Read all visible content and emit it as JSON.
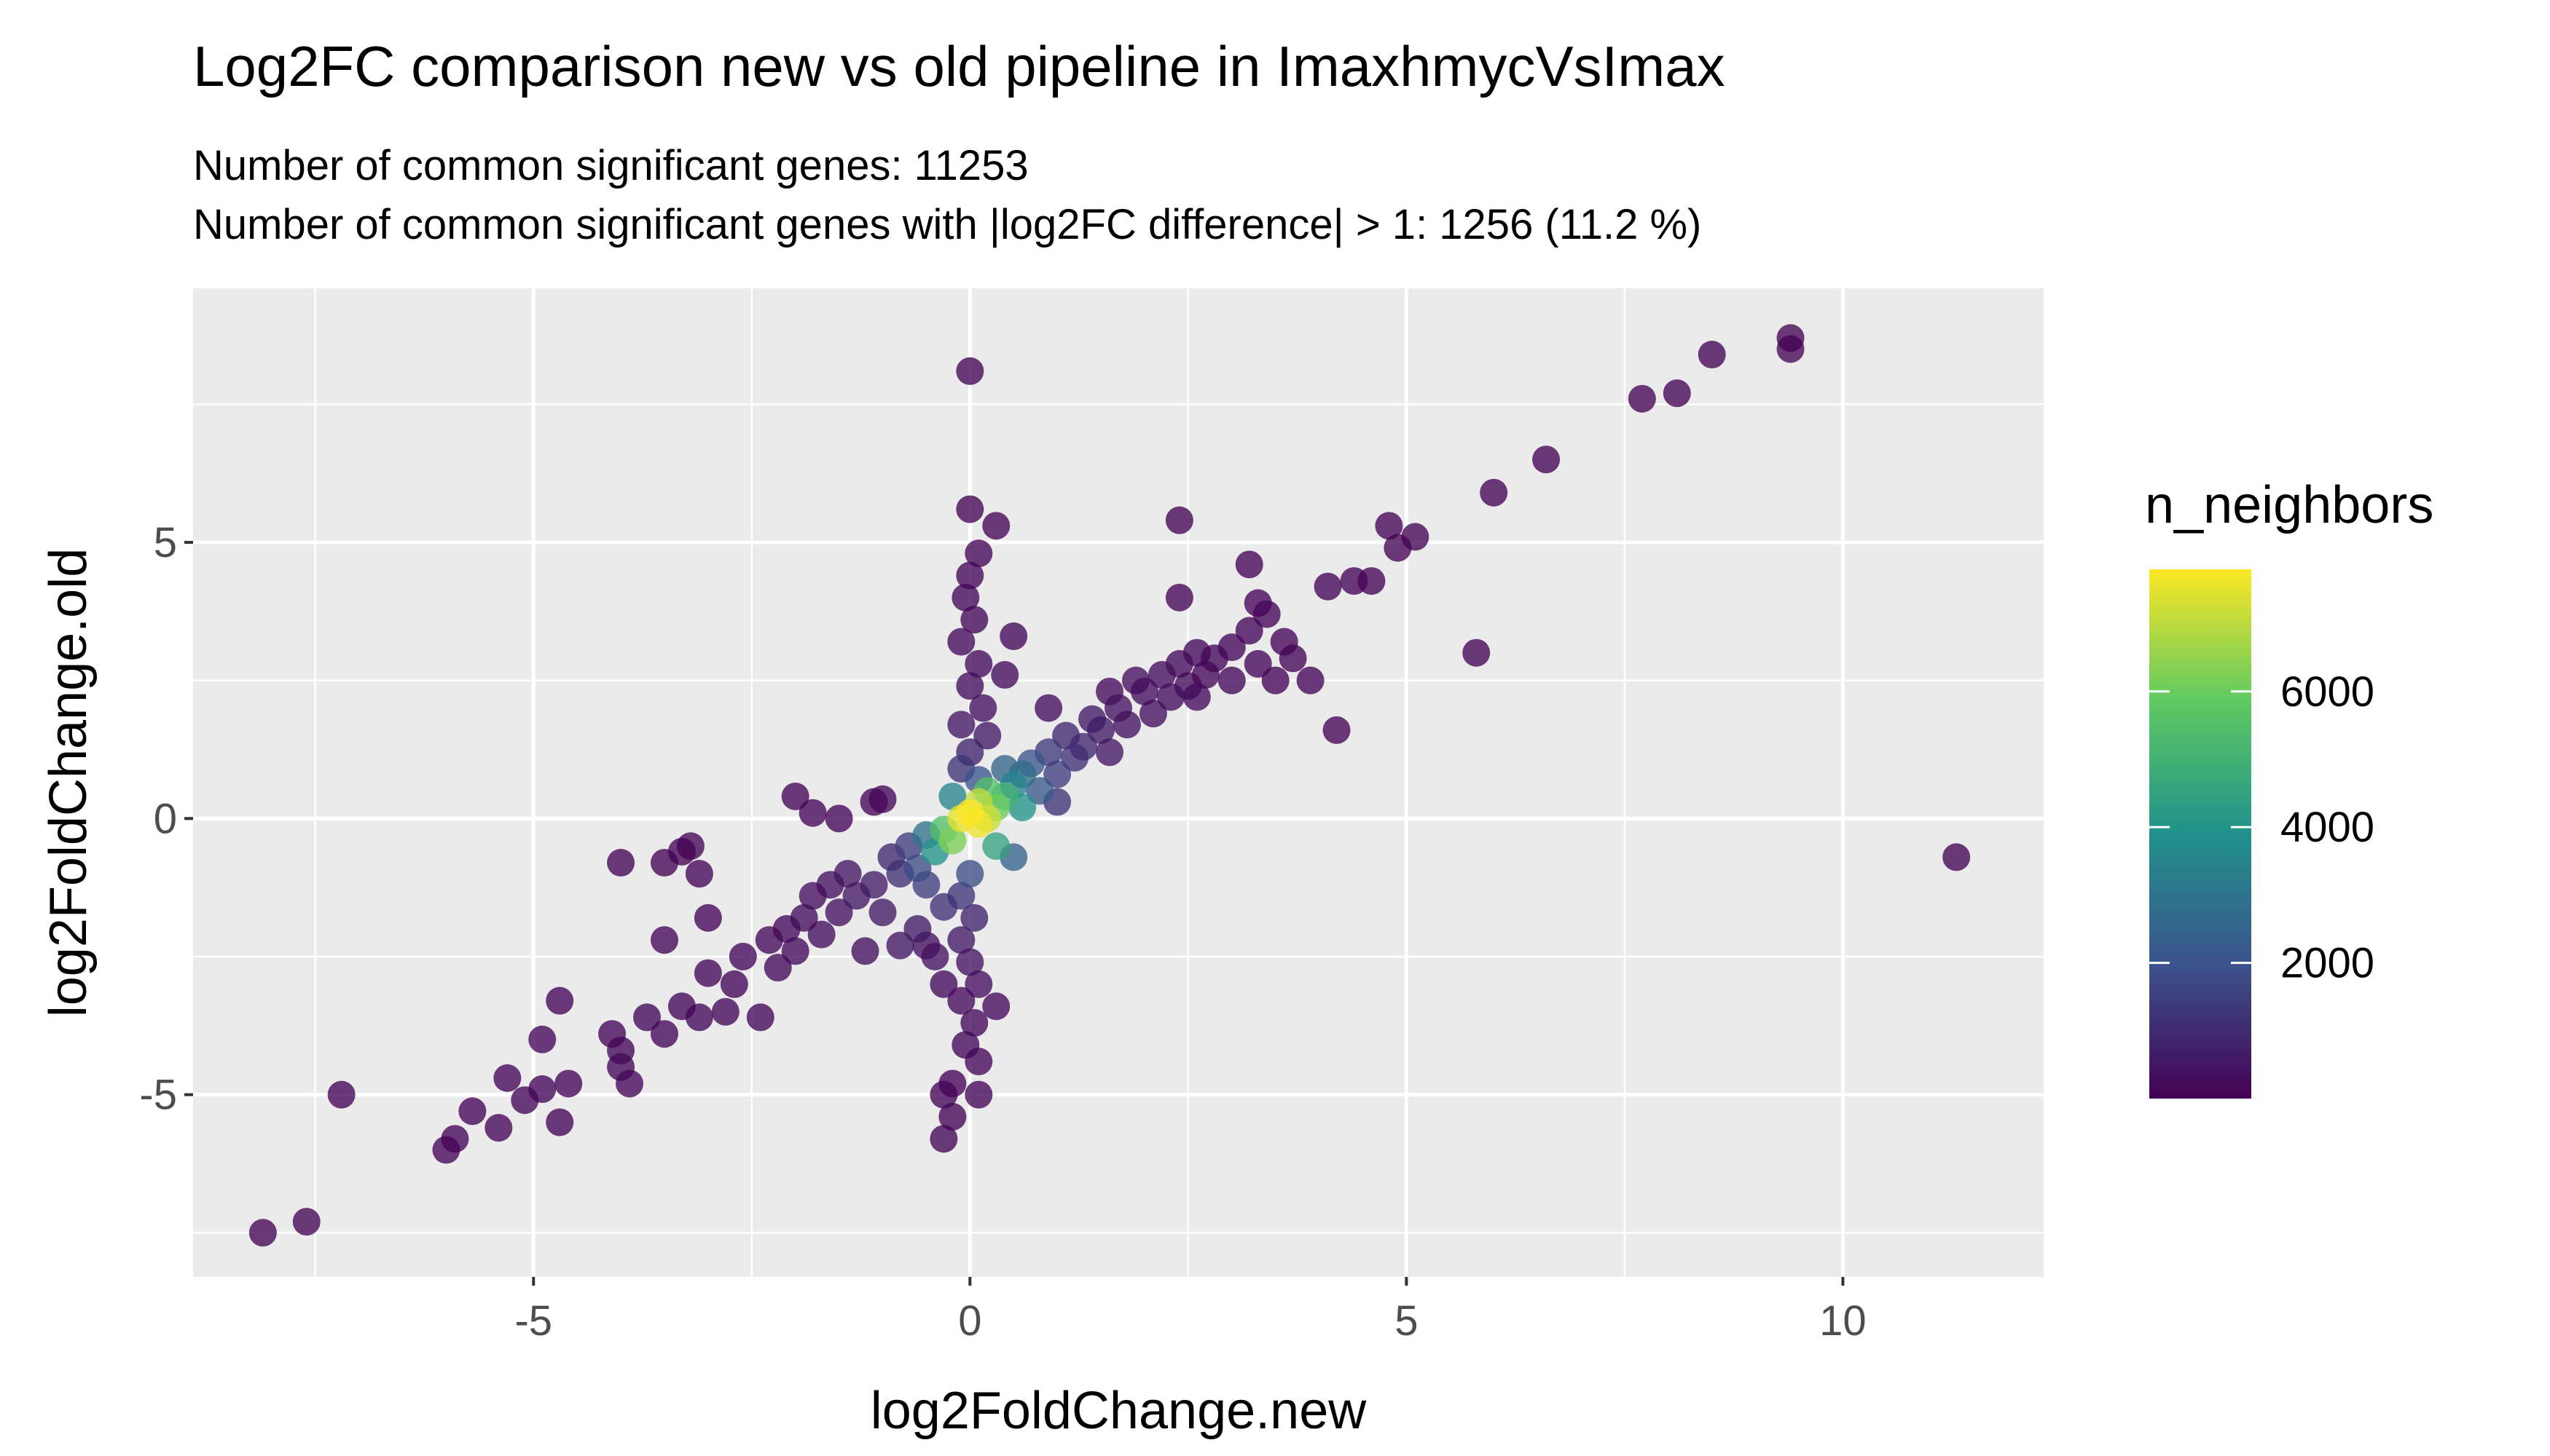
{
  "chart_data": {
    "type": "scatter",
    "title": "Log2FC comparison new vs old pipeline in ImaxhmycVsImax",
    "subtitle_lines": [
      "Number of common significant genes: 11253",
      "Number of common significant genes with |log2FC difference| > 1: 1256 (11.2 %)"
    ],
    "xlabel": "log2FoldChange.new",
    "ylabel": "log2FoldChange.old",
    "xlim": [
      -8.9,
      12.3
    ],
    "ylim": [
      -8.3,
      9.6
    ],
    "x_ticks": [
      -5,
      0,
      5,
      10
    ],
    "x_tick_labels": [
      "-5",
      "0",
      "5",
      "10"
    ],
    "y_ticks": [
      -5,
      0,
      5
    ],
    "y_tick_labels": [
      "-5",
      "0",
      "5"
    ],
    "grid": true,
    "panel_background": "#ebebeb",
    "legend": {
      "title": "n_neighbors",
      "placement": "right",
      "range": [
        0,
        7800
      ],
      "ticks": [
        2000,
        4000,
        6000
      ],
      "tick_labels": [
        "2000",
        "4000",
        "6000"
      ],
      "colors": [
        "#440154",
        "#3b528b",
        "#21918c",
        "#5ec962",
        "#fde725"
      ]
    },
    "points": [
      {
        "x": -8.1,
        "y": -7.5,
        "n": 40
      },
      {
        "x": -7.6,
        "y": -7.3,
        "n": 40
      },
      {
        "x": -7.2,
        "y": -5.0,
        "n": 60
      },
      {
        "x": -6.0,
        "y": -6.0,
        "n": 60
      },
      {
        "x": -5.9,
        "y": -5.8,
        "n": 60
      },
      {
        "x": -5.7,
        "y": -5.3,
        "n": 80
      },
      {
        "x": -5.4,
        "y": -5.6,
        "n": 80
      },
      {
        "x": -5.3,
        "y": -4.7,
        "n": 80
      },
      {
        "x": -5.1,
        "y": -5.1,
        "n": 90
      },
      {
        "x": -4.9,
        "y": -4.9,
        "n": 100
      },
      {
        "x": -4.7,
        "y": -5.5,
        "n": 80
      },
      {
        "x": -4.6,
        "y": -4.8,
        "n": 80
      },
      {
        "x": -4.9,
        "y": -4.0,
        "n": 90
      },
      {
        "x": -4.7,
        "y": -3.3,
        "n": 80
      },
      {
        "x": -4.1,
        "y": -3.9,
        "n": 90
      },
      {
        "x": -4.0,
        "y": -4.5,
        "n": 100
      },
      {
        "x": -3.9,
        "y": -4.8,
        "n": 100
      },
      {
        "x": -4.0,
        "y": -4.2,
        "n": 110
      },
      {
        "x": -4.0,
        "y": -0.8,
        "n": 50
      },
      {
        "x": -3.5,
        "y": -0.8,
        "n": 50
      },
      {
        "x": -3.3,
        "y": -0.6,
        "n": 50
      },
      {
        "x": -3.2,
        "y": -0.5,
        "n": 50
      },
      {
        "x": -3.1,
        "y": -1.0,
        "n": 60
      },
      {
        "x": -3.0,
        "y": -1.8,
        "n": 80
      },
      {
        "x": -3.5,
        "y": -2.2,
        "n": 100
      },
      {
        "x": -3.7,
        "y": -3.6,
        "n": 110
      },
      {
        "x": -3.5,
        "y": -3.9,
        "n": 110
      },
      {
        "x": -3.3,
        "y": -3.4,
        "n": 120
      },
      {
        "x": -3.1,
        "y": -3.6,
        "n": 120
      },
      {
        "x": -3.0,
        "y": -2.8,
        "n": 130
      },
      {
        "x": -2.8,
        "y": -3.5,
        "n": 130
      },
      {
        "x": -2.7,
        "y": -3.0,
        "n": 140
      },
      {
        "x": -2.6,
        "y": -2.5,
        "n": 150
      },
      {
        "x": -2.4,
        "y": -3.6,
        "n": 130
      },
      {
        "x": -2.3,
        "y": -2.2,
        "n": 180
      },
      {
        "x": -2.2,
        "y": -2.7,
        "n": 180
      },
      {
        "x": -2.1,
        "y": -2.0,
        "n": 200
      },
      {
        "x": -2.0,
        "y": -2.4,
        "n": 220
      },
      {
        "x": -1.9,
        "y": -1.8,
        "n": 260
      },
      {
        "x": -2.0,
        "y": 0.4,
        "n": 60
      },
      {
        "x": -1.8,
        "y": 0.1,
        "n": 70
      },
      {
        "x": -1.5,
        "y": 0.0,
        "n": 80
      },
      {
        "x": -1.1,
        "y": 0.3,
        "n": 90
      },
      {
        "x": -1.0,
        "y": 0.35,
        "n": 90
      },
      {
        "x": -1.8,
        "y": -1.4,
        "n": 300
      },
      {
        "x": -1.7,
        "y": -2.1,
        "n": 260
      },
      {
        "x": -1.6,
        "y": -1.2,
        "n": 350
      },
      {
        "x": -1.5,
        "y": -1.7,
        "n": 380
      },
      {
        "x": -1.4,
        "y": -1.0,
        "n": 450
      },
      {
        "x": -1.3,
        "y": -1.4,
        "n": 520
      },
      {
        "x": -1.2,
        "y": -2.4,
        "n": 300
      },
      {
        "x": -1.1,
        "y": -1.2,
        "n": 650
      },
      {
        "x": -1.0,
        "y": -1.7,
        "n": 600
      },
      {
        "x": -0.9,
        "y": -0.7,
        "n": 900
      },
      {
        "x": -0.8,
        "y": -1.0,
        "n": 1100
      },
      {
        "x": -0.8,
        "y": -2.3,
        "n": 500
      },
      {
        "x": -0.7,
        "y": -0.5,
        "n": 1500
      },
      {
        "x": -0.6,
        "y": -0.9,
        "n": 1800
      },
      {
        "x": -0.6,
        "y": -2.0,
        "n": 600
      },
      {
        "x": -0.5,
        "y": -1.2,
        "n": 1500
      },
      {
        "x": -0.5,
        "y": -0.3,
        "n": 3000
      },
      {
        "x": -0.4,
        "y": -0.6,
        "n": 4000
      },
      {
        "x": -0.4,
        "y": -2.5,
        "n": 400
      },
      {
        "x": -0.3,
        "y": -1.6,
        "n": 1100
      },
      {
        "x": -0.3,
        "y": -0.2,
        "n": 5500
      },
      {
        "x": -0.2,
        "y": -0.4,
        "n": 6200
      },
      {
        "x": -0.2,
        "y": 0.4,
        "n": 3500
      },
      {
        "x": -0.1,
        "y": 0.0,
        "n": 7500
      },
      {
        "x": 0.0,
        "y": 0.1,
        "n": 7800
      },
      {
        "x": 0.1,
        "y": -0.1,
        "n": 7600
      },
      {
        "x": 0.1,
        "y": 0.3,
        "n": 7000
      },
      {
        "x": 0.2,
        "y": 0.0,
        "n": 7200
      },
      {
        "x": 0.2,
        "y": 0.5,
        "n": 5500
      },
      {
        "x": 0.3,
        "y": 0.2,
        "n": 6000
      },
      {
        "x": 0.3,
        "y": -0.5,
        "n": 4500
      },
      {
        "x": 0.4,
        "y": 0.4,
        "n": 5000
      },
      {
        "x": 0.4,
        "y": 0.9,
        "n": 2500
      },
      {
        "x": 0.5,
        "y": 0.6,
        "n": 3500
      },
      {
        "x": 0.5,
        "y": -0.7,
        "n": 2500
      },
      {
        "x": 0.6,
        "y": 0.8,
        "n": 2800
      },
      {
        "x": 0.6,
        "y": 0.2,
        "n": 4000
      },
      {
        "x": 0.7,
        "y": 1.0,
        "n": 2000
      },
      {
        "x": 0.8,
        "y": 0.5,
        "n": 2200
      },
      {
        "x": 0.9,
        "y": 1.2,
        "n": 1400
      },
      {
        "x": 1.0,
        "y": 0.3,
        "n": 1200
      },
      {
        "x": 1.0,
        "y": 0.8,
        "n": 1500
      },
      {
        "x": 1.1,
        "y": 1.5,
        "n": 900
      },
      {
        "x": 1.2,
        "y": 1.1,
        "n": 1100
      },
      {
        "x": 1.3,
        "y": 1.3,
        "n": 900
      },
      {
        "x": 1.4,
        "y": 1.8,
        "n": 600
      },
      {
        "x": 1.5,
        "y": 1.6,
        "n": 600
      },
      {
        "x": 1.6,
        "y": 1.2,
        "n": 500
      },
      {
        "x": 1.7,
        "y": 2.0,
        "n": 400
      },
      {
        "x": 1.8,
        "y": 1.7,
        "n": 400
      },
      {
        "x": 1.9,
        "y": 2.5,
        "n": 300
      },
      {
        "x": 2.0,
        "y": 2.3,
        "n": 300
      },
      {
        "x": 2.1,
        "y": 1.9,
        "n": 300
      },
      {
        "x": 2.2,
        "y": 2.6,
        "n": 250
      },
      {
        "x": 2.3,
        "y": 2.2,
        "n": 250
      },
      {
        "x": 2.4,
        "y": 2.8,
        "n": 200
      },
      {
        "x": 2.5,
        "y": 2.4,
        "n": 200
      },
      {
        "x": 2.6,
        "y": 3.0,
        "n": 150
      },
      {
        "x": 2.7,
        "y": 2.6,
        "n": 150
      },
      {
        "x": 2.8,
        "y": 2.9,
        "n": 130
      },
      {
        "x": 3.0,
        "y": 3.1,
        "n": 110
      },
      {
        "x": 3.0,
        "y": 2.5,
        "n": 110
      },
      {
        "x": 3.2,
        "y": 3.4,
        "n": 100
      },
      {
        "x": 3.3,
        "y": 2.8,
        "n": 100
      },
      {
        "x": 3.4,
        "y": 3.7,
        "n": 90
      },
      {
        "x": 3.5,
        "y": 2.5,
        "n": 80
      },
      {
        "x": 3.6,
        "y": 3.2,
        "n": 80
      },
      {
        "x": 3.7,
        "y": 2.9,
        "n": 80
      },
      {
        "x": 3.2,
        "y": 4.6,
        "n": 60
      },
      {
        "x": 3.3,
        "y": 3.9,
        "n": 70
      },
      {
        "x": 2.4,
        "y": 4.0,
        "n": 60
      },
      {
        "x": 2.4,
        "y": 5.4,
        "n": 40
      },
      {
        "x": 2.6,
        "y": 2.2,
        "n": 200
      },
      {
        "x": 3.9,
        "y": 2.5,
        "n": 70
      },
      {
        "x": 4.2,
        "y": 1.6,
        "n": 50
      },
      {
        "x": 4.1,
        "y": 4.2,
        "n": 60
      },
      {
        "x": 4.4,
        "y": 4.3,
        "n": 60
      },
      {
        "x": 4.6,
        "y": 4.3,
        "n": 60
      },
      {
        "x": 4.8,
        "y": 5.3,
        "n": 50
      },
      {
        "x": 4.9,
        "y": 4.9,
        "n": 50
      },
      {
        "x": 5.1,
        "y": 5.1,
        "n": 50
      },
      {
        "x": 5.8,
        "y": 3.0,
        "n": 40
      },
      {
        "x": 6.0,
        "y": 5.9,
        "n": 40
      },
      {
        "x": 6.6,
        "y": 6.5,
        "n": 40
      },
      {
        "x": 7.7,
        "y": 7.6,
        "n": 40
      },
      {
        "x": 8.1,
        "y": 7.7,
        "n": 40
      },
      {
        "x": 8.5,
        "y": 8.4,
        "n": 40
      },
      {
        "x": 9.4,
        "y": 8.5,
        "n": 40
      },
      {
        "x": 9.4,
        "y": 8.7,
        "n": 40
      },
      {
        "x": 11.3,
        "y": -0.7,
        "n": 30
      },
      {
        "x": 0.0,
        "y": 8.1,
        "n": 30
      },
      {
        "x": 0.0,
        "y": 5.6,
        "n": 50
      },
      {
        "x": 0.3,
        "y": 5.3,
        "n": 50
      },
      {
        "x": 0.1,
        "y": 4.8,
        "n": 70
      },
      {
        "x": 0.0,
        "y": 4.4,
        "n": 90
      },
      {
        "x": -0.05,
        "y": 4.0,
        "n": 110
      },
      {
        "x": 0.05,
        "y": 3.6,
        "n": 130
      },
      {
        "x": -0.1,
        "y": 3.2,
        "n": 160
      },
      {
        "x": 0.1,
        "y": 2.8,
        "n": 200
      },
      {
        "x": 0.5,
        "y": 3.3,
        "n": 150
      },
      {
        "x": 0.4,
        "y": 2.6,
        "n": 220
      },
      {
        "x": 0.0,
        "y": 2.4,
        "n": 260
      },
      {
        "x": 0.15,
        "y": 2.0,
        "n": 340
      },
      {
        "x": -0.1,
        "y": 1.7,
        "n": 450
      },
      {
        "x": 0.2,
        "y": 1.5,
        "n": 550
      },
      {
        "x": 0.0,
        "y": 1.2,
        "n": 800
      },
      {
        "x": -0.1,
        "y": 0.9,
        "n": 1200
      },
      {
        "x": 0.1,
        "y": 0.7,
        "n": 2000
      },
      {
        "x": 0.9,
        "y": 2.0,
        "n": 250
      },
      {
        "x": 1.6,
        "y": 2.3,
        "n": 200
      },
      {
        "x": 0.0,
        "y": -1.0,
        "n": 1800
      },
      {
        "x": -0.1,
        "y": -1.4,
        "n": 1200
      },
      {
        "x": 0.05,
        "y": -1.8,
        "n": 800
      },
      {
        "x": -0.1,
        "y": -2.2,
        "n": 550
      },
      {
        "x": 0.0,
        "y": -2.6,
        "n": 400
      },
      {
        "x": 0.1,
        "y": -3.0,
        "n": 280
      },
      {
        "x": -0.1,
        "y": -3.3,
        "n": 220
      },
      {
        "x": 0.05,
        "y": -3.7,
        "n": 170
      },
      {
        "x": -0.05,
        "y": -4.1,
        "n": 130
      },
      {
        "x": 0.1,
        "y": -4.4,
        "n": 100
      },
      {
        "x": -0.2,
        "y": -4.8,
        "n": 80
      },
      {
        "x": 0.1,
        "y": -5.0,
        "n": 70
      },
      {
        "x": -0.3,
        "y": -5.0,
        "n": 60
      },
      {
        "x": -0.2,
        "y": -5.4,
        "n": 50
      },
      {
        "x": -0.3,
        "y": -5.8,
        "n": 40
      },
      {
        "x": -0.3,
        "y": -3.0,
        "n": 200
      },
      {
        "x": 0.3,
        "y": -3.4,
        "n": 180
      },
      {
        "x": -0.5,
        "y": -2.3,
        "n": 350
      }
    ]
  }
}
